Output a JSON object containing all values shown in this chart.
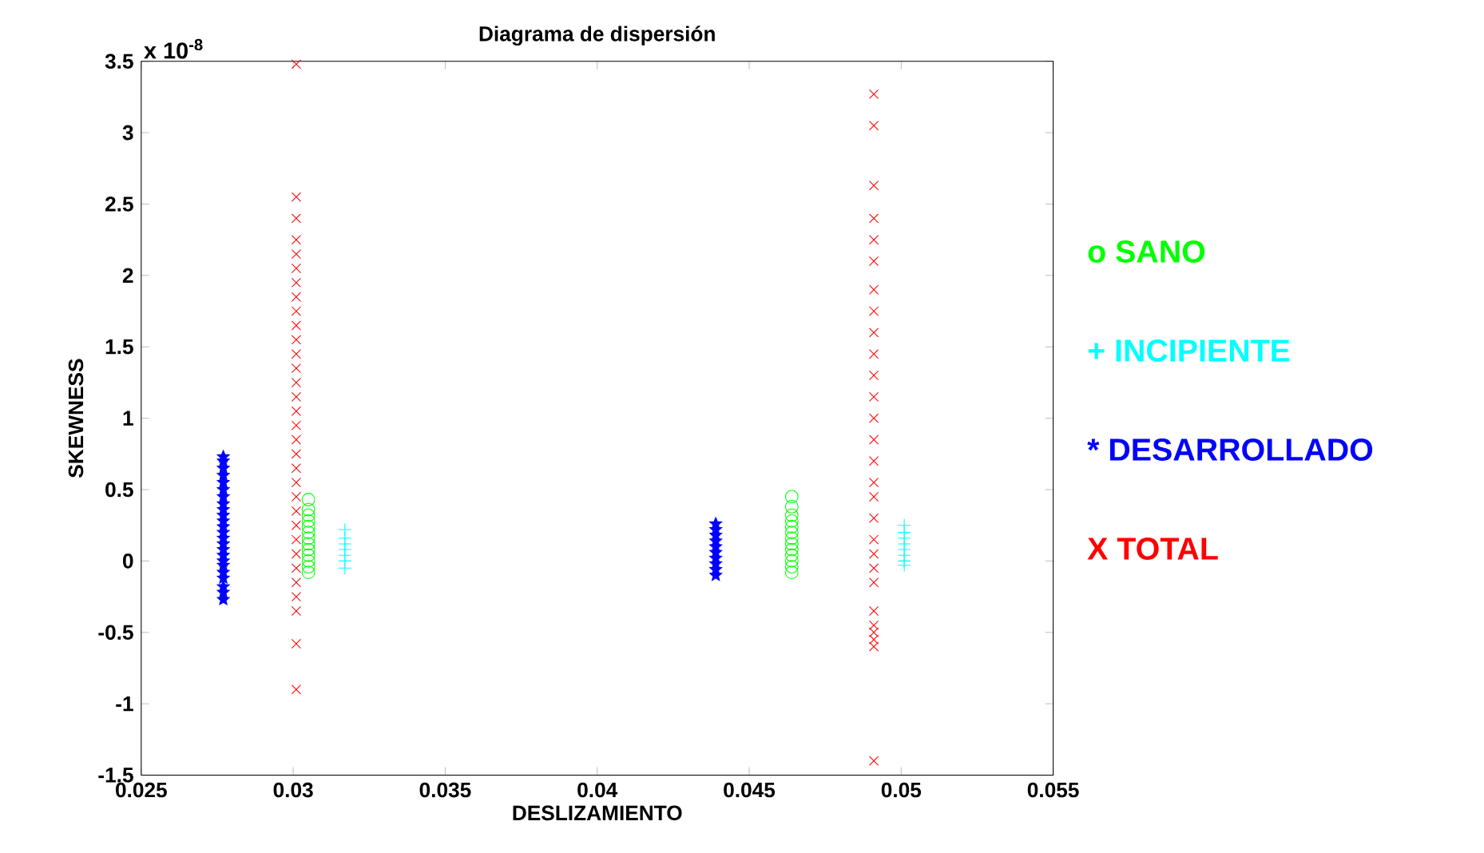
{
  "chart_data": {
    "type": "scatter",
    "title": "Diagrama de dispersión",
    "xlabel": "DESLIZAMIENTO",
    "ylabel": "SKEWNESS",
    "annotations": [
      "x 10$^{-8}$"
    ],
    "xlim": [
      0.025,
      0.055
    ],
    "ylim": [
      -1.5,
      3.5
    ],
    "xticks": [
      0.025,
      0.03,
      0.035,
      0.04,
      0.045,
      0.05,
      0.055
    ],
    "yticks": [
      -1.5,
      -1,
      -0.5,
      0,
      0.5,
      1,
      1.5,
      2,
      2.5,
      3,
      3.5
    ],
    "grid": false,
    "legend": "right",
    "series": [
      {
        "name": "o SANO",
        "color": "#00ff00",
        "marker": "circle",
        "x": [
          0.0305,
          0.0305,
          0.0305,
          0.0305,
          0.0305,
          0.0305,
          0.0305,
          0.0305,
          0.0305,
          0.0305,
          0.0305,
          0.0305,
          0.0305,
          0.0464,
          0.0464,
          0.0464,
          0.0464,
          0.0464,
          0.0464,
          0.0464,
          0.0464,
          0.0464,
          0.0464,
          0.0464,
          0.0464,
          0.0464
        ],
        "values": [
          -0.08,
          -0.04,
          0,
          0.04,
          0.08,
          0.12,
          0.16,
          0.2,
          0.24,
          0.28,
          0.32,
          0.36,
          0.43,
          -0.08,
          -0.04,
          0,
          0.04,
          0.08,
          0.12,
          0.16,
          0.2,
          0.24,
          0.28,
          0.32,
          0.38,
          0.45
        ]
      },
      {
        "name": "+ INCIPIENTE",
        "color": "#00ffff",
        "marker": "plus",
        "x": [
          0.0317,
          0.0317,
          0.0317,
          0.0317,
          0.0317,
          0.0317,
          0.0317,
          0.0501,
          0.0501,
          0.0501,
          0.0501,
          0.0501,
          0.0501,
          0.0501,
          0.0501
        ],
        "values": [
          -0.05,
          0,
          0.04,
          0.08,
          0.12,
          0.16,
          0.22,
          -0.03,
          0,
          0.04,
          0.08,
          0.12,
          0.16,
          0.2,
          0.25
        ]
      },
      {
        "name": "* DESARROLLADO",
        "color": "#0000ff",
        "marker": "star",
        "x": [
          0.0277,
          0.0277,
          0.0277,
          0.0277,
          0.0277,
          0.0277,
          0.0277,
          0.0277,
          0.0277,
          0.0277,
          0.0277,
          0.0277,
          0.0277,
          0.0277,
          0.0277,
          0.0277,
          0.0277,
          0.0277,
          0.0277,
          0.0277,
          0.0277,
          0.0277,
          0.0277,
          0.0277,
          0.0439,
          0.0439,
          0.0439,
          0.0439,
          0.0439,
          0.0439,
          0.0439,
          0.0439,
          0.0439,
          0.0439
        ],
        "values": [
          -0.27,
          -0.22,
          -0.18,
          -0.12,
          -0.08,
          -0.03,
          0,
          0.04,
          0.08,
          0.12,
          0.16,
          0.2,
          0.24,
          0.28,
          0.32,
          0.36,
          0.4,
          0.45,
          0.5,
          0.55,
          0.6,
          0.65,
          0.7,
          0.73,
          -0.1,
          -0.06,
          -0.02,
          0.02,
          0.06,
          0.1,
          0.14,
          0.18,
          0.22,
          0.26
        ]
      },
      {
        "name": "X TOTAL",
        "color": "#ff0000",
        "marker": "cross",
        "x": [
          0.0301,
          0.0301,
          0.0301,
          0.0301,
          0.0301,
          0.0301,
          0.0301,
          0.0301,
          0.0301,
          0.0301,
          0.0301,
          0.0301,
          0.0301,
          0.0301,
          0.0301,
          0.0301,
          0.0301,
          0.0301,
          0.0301,
          0.0301,
          0.0301,
          0.0301,
          0.0301,
          0.0301,
          0.0301,
          0.0301,
          0.0301,
          0.0301,
          0.0301,
          0.0301,
          0.0301,
          0.0301,
          0.0491,
          0.0491,
          0.0491,
          0.0491,
          0.0491,
          0.0491,
          0.0491,
          0.0491,
          0.0491,
          0.0491,
          0.0491,
          0.0491,
          0.0491,
          0.0491,
          0.0491,
          0.0491,
          0.0491,
          0.0491,
          0.0491,
          0.0491,
          0.0491,
          0.0491,
          0.0491,
          0.0491,
          0.0491,
          0.0491,
          0.0491,
          0.0491
        ],
        "values": [
          -0.9,
          -0.58,
          -0.35,
          -0.25,
          -0.15,
          -0.05,
          0.05,
          0.15,
          0.25,
          0.35,
          0.45,
          0.55,
          0.65,
          0.75,
          0.85,
          0.95,
          1.05,
          1.15,
          1.25,
          1.35,
          1.45,
          1.55,
          1.65,
          1.75,
          1.85,
          1.95,
          2.05,
          2.15,
          2.25,
          2.4,
          2.55,
          3.48,
          -1.4,
          -0.6,
          -0.55,
          -0.5,
          -0.45,
          -0.35,
          -0.15,
          -0.05,
          0.05,
          0.15,
          0.3,
          0.45,
          0.55,
          0.7,
          0.85,
          1.0,
          1.15,
          1.3,
          1.45,
          1.6,
          1.75,
          1.9,
          2.1,
          2.25,
          2.4,
          2.63,
          3.05,
          3.27
        ]
      }
    ]
  }
}
